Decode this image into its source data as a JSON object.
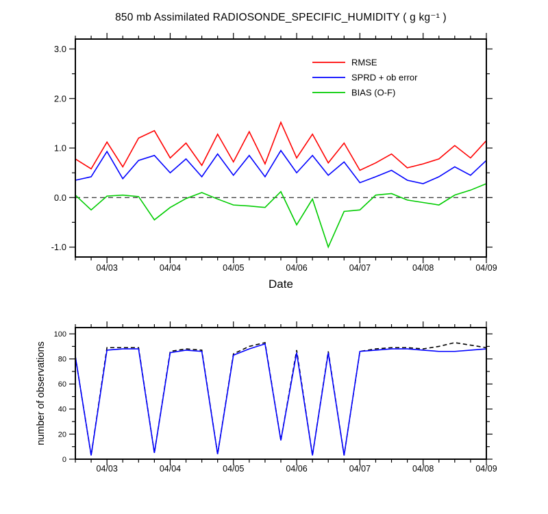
{
  "figure": {
    "title": "850 mb Assimilated RADIOSONDE_SPECIFIC_HUMIDITY ( g kg⁻¹ )",
    "x_axis_title": "Date",
    "frame_color": "#000000",
    "background": "#ffffff"
  },
  "chart_data": [
    {
      "id": "error-statistics",
      "type": "line",
      "title": "850 mb Assimilated RADIOSONDE_SPECIFIC_HUMIDITY ( g kg⁻¹ )",
      "xlabel": "Date",
      "ylabel": "",
      "xlim": [
        0,
        6.5
      ],
      "ylim": [
        -1.2,
        3.2
      ],
      "grid": false,
      "legend_position": "inside-upper-right",
      "x_minor_step": 0.25,
      "x_major_ticks": [
        {
          "x": 0.5,
          "label": "04/03"
        },
        {
          "x": 1.5,
          "label": "04/04"
        },
        {
          "x": 2.5,
          "label": "04/05"
        },
        {
          "x": 3.5,
          "label": "04/06"
        },
        {
          "x": 4.5,
          "label": "04/07"
        },
        {
          "x": 5.5,
          "label": "04/08"
        },
        {
          "x": 6.5,
          "label": "04/09"
        }
      ],
      "y_major_ticks": [
        {
          "y": -1,
          "label": "-1.0"
        },
        {
          "y": 0,
          "label": "0.0"
        },
        {
          "y": 1,
          "label": "1.0"
        },
        {
          "y": 2,
          "label": "2.0"
        },
        {
          "y": 3,
          "label": "3.0"
        }
      ],
      "y_minor_step": 0.5,
      "zero_line": true,
      "legend": [
        {
          "label": "RMSE",
          "color": "#ff0000"
        },
        {
          "label": "SPRD + ob error",
          "color": "#0000ff"
        },
        {
          "label": "BIAS (O-F)",
          "color": "#00cc00"
        }
      ],
      "x": [
        0,
        0.25,
        0.5,
        0.75,
        1,
        1.25,
        1.5,
        1.75,
        2,
        2.25,
        2.5,
        2.75,
        3,
        3.25,
        3.5,
        3.75,
        4,
        4.25,
        4.5,
        4.75,
        5,
        5.25,
        5.5,
        5.75,
        6,
        6.25,
        6.5
      ],
      "series": [
        {
          "name": "RMSE",
          "color": "#ff0000",
          "style": "solid",
          "values": [
            0.78,
            0.58,
            1.12,
            0.62,
            1.2,
            1.35,
            0.8,
            1.1,
            0.65,
            1.28,
            0.72,
            1.33,
            0.68,
            1.52,
            0.8,
            1.28,
            0.7,
            1.1,
            0.55,
            0.7,
            0.88,
            0.6,
            0.68,
            0.78,
            1.05,
            0.8,
            1.15
          ]
        },
        {
          "name": "SPRD + ob error",
          "color": "#0000ff",
          "style": "solid",
          "values": [
            0.35,
            0.42,
            0.93,
            0.38,
            0.75,
            0.85,
            0.5,
            0.78,
            0.42,
            0.88,
            0.45,
            0.85,
            0.42,
            0.95,
            0.5,
            0.85,
            0.45,
            0.72,
            0.3,
            0.42,
            0.55,
            0.35,
            0.28,
            0.42,
            0.62,
            0.45,
            0.75
          ]
        },
        {
          "name": "BIAS (O-F)",
          "color": "#00cc00",
          "style": "solid",
          "values": [
            0.05,
            -0.25,
            0.03,
            0.05,
            0.02,
            -0.45,
            -0.2,
            -0.02,
            0.1,
            -0.03,
            -0.15,
            -0.17,
            -0.2,
            0.12,
            -0.55,
            -0.03,
            -1.0,
            -0.28,
            -0.25,
            0.05,
            0.08,
            -0.05,
            -0.1,
            -0.15,
            0.05,
            0.15,
            0.28
          ]
        }
      ]
    },
    {
      "id": "observation-counts",
      "type": "line",
      "title": "",
      "xlabel": "",
      "ylabel": "number of observations",
      "xlim": [
        0,
        6.5
      ],
      "ylim": [
        0,
        105
      ],
      "grid": false,
      "x_minor_step": 0.25,
      "x_major_ticks": [
        {
          "x": 0.5,
          "label": "04/03"
        },
        {
          "x": 1.5,
          "label": "04/04"
        },
        {
          "x": 2.5,
          "label": "04/05"
        },
        {
          "x": 3.5,
          "label": "04/06"
        },
        {
          "x": 4.5,
          "label": "04/07"
        },
        {
          "x": 5.5,
          "label": "04/08"
        },
        {
          "x": 6.5,
          "label": "04/09"
        }
      ],
      "y_major_ticks": [
        {
          "y": 0,
          "label": "0"
        },
        {
          "y": 20,
          "label": "20"
        },
        {
          "y": 40,
          "label": "40"
        },
        {
          "y": 60,
          "label": "60"
        },
        {
          "y": 80,
          "label": "80"
        },
        {
          "y": 100,
          "label": "100"
        }
      ],
      "y_minor_step": 10,
      "zero_line": false,
      "x": [
        0,
        0.25,
        0.5,
        0.75,
        1,
        1.25,
        1.5,
        1.75,
        2,
        2.25,
        2.5,
        2.75,
        3,
        3.25,
        3.5,
        3.75,
        4,
        4.25,
        4.5,
        4.75,
        5,
        5.25,
        5.5,
        5.75,
        6,
        6.25,
        6.5
      ],
      "series": [
        {
          "name": "blue-solid-count",
          "color": "#0000ff",
          "style": "solid",
          "values": [
            82,
            3,
            87,
            88,
            88,
            5,
            85,
            87,
            86,
            4,
            83,
            88,
            92,
            15,
            85,
            3,
            85,
            3,
            86,
            87,
            88,
            88,
            87,
            86,
            86,
            87,
            88
          ]
        },
        {
          "name": "black-dashed-count",
          "color": "#000000",
          "style": "dashed",
          "values": [
            82,
            3,
            89,
            89,
            89,
            5,
            86,
            88,
            87,
            4,
            84,
            90,
            93,
            15,
            87,
            3,
            86,
            3,
            86,
            88,
            89,
            89,
            88,
            90,
            93,
            91,
            89
          ]
        }
      ]
    }
  ]
}
